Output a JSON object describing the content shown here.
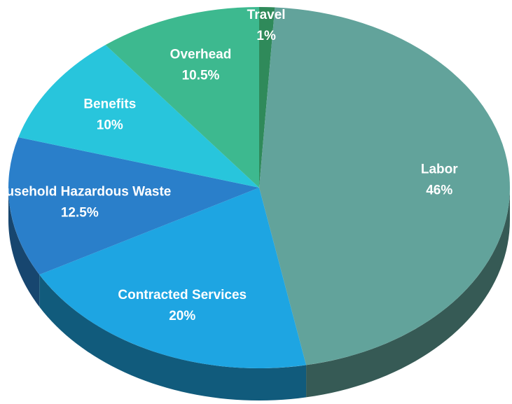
{
  "chart_data": {
    "type": "pie",
    "categories": [
      "Travel",
      "Labor",
      "Contracted Services",
      "Household Hazardous Waste",
      "Benefits",
      "Overhead"
    ],
    "values": [
      1,
      46,
      20,
      12.5,
      10,
      10.5
    ],
    "value_labels": [
      "1%",
      "46%",
      "20%",
      "12.5%",
      "10%",
      "10.5%"
    ],
    "colors": [
      "#2f8a5a",
      "#62a39b",
      "#1ea5e2",
      "#2a7fca",
      "#28c5dc",
      "#3db98f"
    ]
  }
}
